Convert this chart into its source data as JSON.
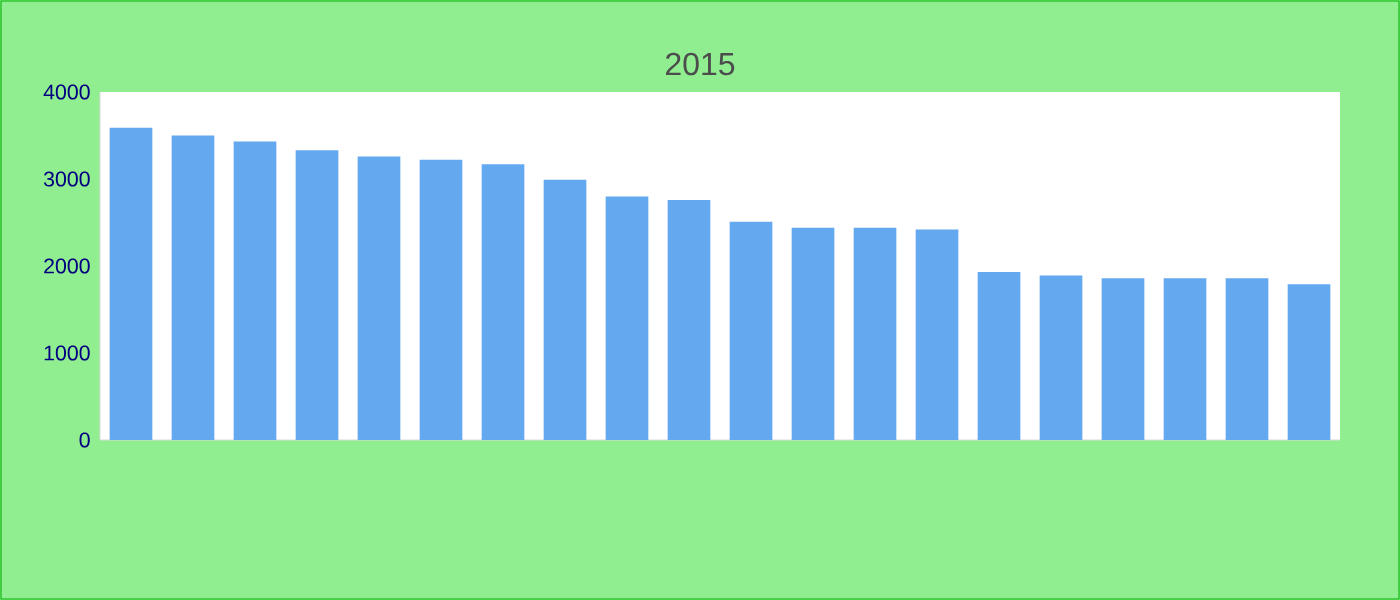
{
  "chart_data": {
    "type": "bar",
    "title": "2015",
    "categories": [
      null,
      null,
      null,
      null,
      null,
      null,
      null,
      null,
      null,
      null,
      null,
      null,
      null,
      null,
      null,
      null,
      null,
      null,
      null,
      null
    ],
    "values": [
      3590,
      3500,
      3430,
      3330,
      3260,
      3220,
      3170,
      2990,
      2800,
      2760,
      2510,
      2440,
      2440,
      2420,
      1930,
      1890,
      1860,
      1860,
      1860,
      1790
    ],
    "color": "#64a8f0",
    "ylim": [
      0,
      4000
    ],
    "yticks": [
      0,
      1000,
      2000,
      3000,
      4000
    ]
  }
}
